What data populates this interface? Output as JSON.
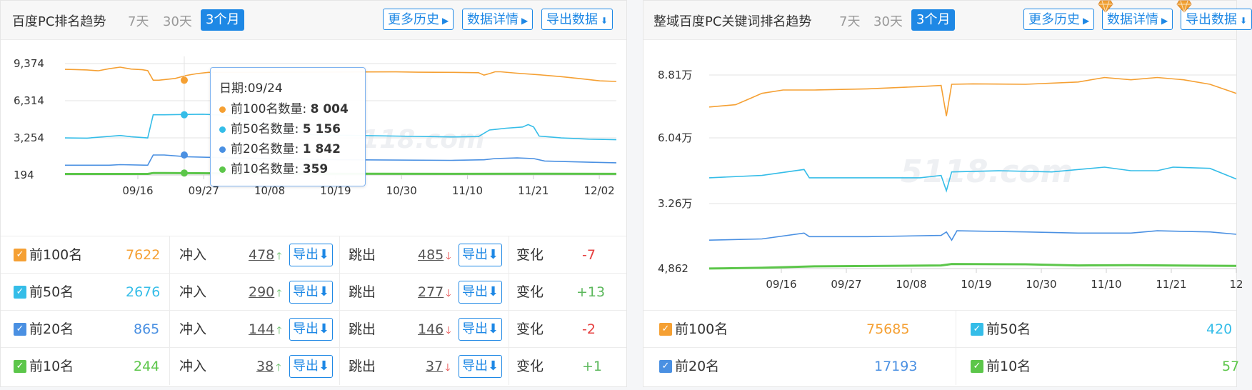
{
  "panel1": {
    "title": "百度PC排名趋势",
    "ranges": [
      "7天",
      "30天",
      "3个月"
    ],
    "active_range": "3个月",
    "buttons": {
      "history": "更多历史",
      "details": "数据详情",
      "export": "导出数据"
    },
    "tooltip": {
      "date": "日期:09/24",
      "rows": [
        {
          "label": "前100名数量:",
          "value": "8 004",
          "color": "#f5a033"
        },
        {
          "label": "前50名数量:",
          "value": "5 156",
          "color": "#35bde8"
        },
        {
          "label": "前20名数量:",
          "value": "1 842",
          "color": "#4a90e2"
        },
        {
          "label": "前10名数量:",
          "value": "359",
          "color": "#5cc64a"
        }
      ]
    },
    "stats": [
      {
        "label": "前100名",
        "value": "7622",
        "color": "#f5a033",
        "in_label": "冲入",
        "in": "478",
        "out_label": "跳出",
        "out": "485",
        "export": "导出",
        "change_label": "变化",
        "change": "-7",
        "change_color": "#e64040"
      },
      {
        "label": "前50名",
        "value": "2676",
        "color": "#35bde8",
        "in_label": "冲入",
        "in": "290",
        "out_label": "跳出",
        "out": "277",
        "export": "导出",
        "change_label": "变化",
        "change": "+13",
        "change_color": "#5cb85c"
      },
      {
        "label": "前20名",
        "value": "865",
        "color": "#4a90e2",
        "in_label": "冲入",
        "in": "144",
        "out_label": "跳出",
        "out": "146",
        "export": "导出",
        "change_label": "变化",
        "change": "-2",
        "change_color": "#e64040"
      },
      {
        "label": "前10名",
        "value": "244",
        "color": "#5cc64a",
        "in_label": "冲入",
        "in": "38",
        "out_label": "跳出",
        "out": "37",
        "export": "导出",
        "change_label": "变化",
        "change": "+1",
        "change_color": "#5cb85c"
      }
    ]
  },
  "panel2": {
    "title": "整域百度PC关键词排名趋势",
    "ranges": [
      "7天",
      "30天",
      "3个月"
    ],
    "active_range": "3个月",
    "buttons": {
      "history": "更多历史",
      "details": "数据详情",
      "export": "导出数据"
    },
    "stats": [
      {
        "label": "前100名",
        "value": "75685",
        "color": "#f5a033"
      },
      {
        "label": "前50名",
        "value": "420",
        "color": "#35bde8"
      },
      {
        "label": "前20名",
        "value": "17193",
        "color": "#4a90e2"
      },
      {
        "label": "前10名",
        "value": "57",
        "color": "#5cc64a"
      }
    ]
  },
  "chart_data": [
    {
      "type": "line",
      "title": "百度PC排名趋势",
      "x_ticks": [
        "09/16",
        "09/27",
        "10/08",
        "10/19",
        "10/30",
        "11/10",
        "11/21",
        "12/02"
      ],
      "y_ticks": [
        "194",
        "3,254",
        "6,314",
        "9,374"
      ],
      "ylim": [
        194,
        9374
      ],
      "watermark": "5118.com",
      "series": [
        {
          "name": "前100名",
          "color": "#f5a033",
          "points": [
            [
              0,
              8900
            ],
            [
              2,
              8880
            ],
            [
              4,
              8850
            ],
            [
              6,
              8780
            ],
            [
              8,
              8950
            ],
            [
              10,
              9080
            ],
            [
              12,
              8920
            ],
            [
              14,
              8870
            ],
            [
              15,
              8800
            ],
            [
              16,
              8004
            ],
            [
              17,
              8004
            ],
            [
              20,
              8150
            ],
            [
              22,
              8400
            ],
            [
              24,
              8550
            ],
            [
              26,
              8650
            ],
            [
              30,
              8650
            ],
            [
              40,
              8660
            ],
            [
              50,
              8680
            ],
            [
              60,
              8690
            ],
            [
              64,
              8660
            ],
            [
              70,
              8650
            ],
            [
              75,
              8620
            ],
            [
              76,
              8420
            ],
            [
              77,
              8550
            ],
            [
              78,
              8700
            ],
            [
              79,
              8700
            ],
            [
              82,
              8580
            ],
            [
              86,
              8450
            ],
            [
              90,
              8300
            ],
            [
              94,
              8100
            ],
            [
              97,
              7950
            ],
            [
              100,
              7900
            ]
          ]
        },
        {
          "name": "前50名",
          "color": "#35bde8",
          "points": [
            [
              0,
              3250
            ],
            [
              4,
              3230
            ],
            [
              8,
              3380
            ],
            [
              10,
              3450
            ],
            [
              12,
              3350
            ],
            [
              15,
              3250
            ],
            [
              16,
              5156
            ],
            [
              17,
              5156
            ],
            [
              18,
              5156
            ],
            [
              25,
              5200
            ],
            [
              30,
              5100
            ],
            [
              35,
              4400
            ],
            [
              45,
              3500
            ],
            [
              60,
              3400
            ],
            [
              70,
              3330
            ],
            [
              75,
              3360
            ],
            [
              77,
              3900
            ],
            [
              78,
              3950
            ],
            [
              80,
              4050
            ],
            [
              83,
              4150
            ],
            [
              84,
              4350
            ],
            [
              85,
              4150
            ],
            [
              86,
              3400
            ],
            [
              90,
              3250
            ],
            [
              95,
              3150
            ],
            [
              100,
              3100
            ]
          ]
        },
        {
          "name": "前20名",
          "color": "#4a90e2",
          "points": [
            [
              0,
              1000
            ],
            [
              8,
              1000
            ],
            [
              10,
              1050
            ],
            [
              15,
              1000
            ],
            [
              16,
              1842
            ],
            [
              18,
              1842
            ],
            [
              22,
              1700
            ],
            [
              30,
              1600
            ],
            [
              50,
              1450
            ],
            [
              70,
              1400
            ],
            [
              76,
              1450
            ],
            [
              78,
              1550
            ],
            [
              82,
              1600
            ],
            [
              85,
              1550
            ],
            [
              87,
              1350
            ],
            [
              95,
              1250
            ],
            [
              100,
              1200
            ]
          ]
        },
        {
          "name": "前10名",
          "color": "#5cc64a",
          "points": [
            [
              0,
              280
            ],
            [
              15,
              280
            ],
            [
              16,
              359
            ],
            [
              18,
              359
            ],
            [
              30,
              330
            ],
            [
              50,
              300
            ],
            [
              70,
              290
            ],
            [
              85,
              300
            ],
            [
              100,
              290
            ]
          ]
        }
      ]
    },
    {
      "type": "line",
      "title": "整域百度PC关键词排名趋势",
      "x_ticks": [
        "09/16",
        "09/27",
        "10/08",
        "10/19",
        "10/30",
        "11/10",
        "11/21",
        "12"
      ],
      "y_ticks": [
        "4,862",
        "3.26万",
        "6.04万",
        "8.81万"
      ],
      "watermark": "5118.com",
      "series": [
        {
          "name": "前100名",
          "color": "#f5a033",
          "points": [
            [
              0,
              74000
            ],
            [
              5,
              75000
            ],
            [
              8,
              78000
            ],
            [
              10,
              80000
            ],
            [
              14,
              81500
            ],
            [
              20,
              81500
            ],
            [
              30,
              82000
            ],
            [
              40,
              83000
            ],
            [
              44,
              83500
            ],
            [
              45,
              70000
            ],
            [
              46,
              84000
            ],
            [
              50,
              84200
            ],
            [
              60,
              84000
            ],
            [
              70,
              85000
            ],
            [
              75,
              87000
            ],
            [
              80,
              86000
            ],
            [
              85,
              87000
            ],
            [
              90,
              86000
            ],
            [
              95,
              84000
            ],
            [
              100,
              80000
            ]
          ]
        },
        {
          "name": "前50名",
          "color": "#35bde8",
          "points": [
            [
              0,
              43500
            ],
            [
              10,
              44500
            ],
            [
              18,
              47000
            ],
            [
              19,
              43500
            ],
            [
              24,
              43500
            ],
            [
              40,
              43500
            ],
            [
              44,
              44500
            ],
            [
              45,
              38000
            ],
            [
              46,
              46000
            ],
            [
              55,
              46500
            ],
            [
              65,
              46000
            ],
            [
              75,
              48000
            ],
            [
              80,
              46500
            ],
            [
              85,
              46500
            ],
            [
              88,
              48000
            ],
            [
              95,
              47500
            ],
            [
              100,
              43000
            ]
          ]
        },
        {
          "name": "前20名",
          "color": "#4a90e2",
          "points": [
            [
              0,
              17000
            ],
            [
              10,
              17500
            ],
            [
              18,
              20000
            ],
            [
              19,
              18500
            ],
            [
              30,
              18500
            ],
            [
              44,
              19000
            ],
            [
              45,
              20500
            ],
            [
              46,
              17000
            ],
            [
              47,
              21000
            ],
            [
              60,
              20500
            ],
            [
              70,
              20000
            ],
            [
              80,
              20000
            ],
            [
              85,
              21000
            ],
            [
              95,
              20500
            ],
            [
              100,
              19500
            ]
          ]
        },
        {
          "name": "前10名",
          "color": "#5cc64a",
          "points": [
            [
              0,
              4900
            ],
            [
              10,
              5200
            ],
            [
              20,
              5800
            ],
            [
              44,
              6200
            ],
            [
              46,
              6800
            ],
            [
              60,
              6700
            ],
            [
              70,
              6200
            ],
            [
              80,
              6300
            ],
            [
              100,
              6000
            ]
          ]
        }
      ]
    }
  ]
}
